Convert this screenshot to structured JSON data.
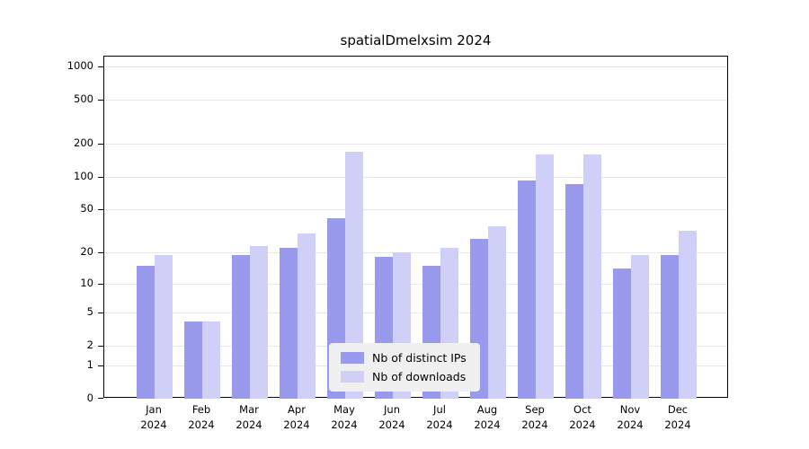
{
  "title": "spatialDmelxsim 2024",
  "legend": {
    "items": [
      {
        "label": "Nb of distinct IPs"
      },
      {
        "label": "Nb of downloads"
      }
    ]
  },
  "chart_data": {
    "type": "bar",
    "title": "spatialDmelxsim 2024",
    "categories": [
      "Jan\n2024",
      "Feb\n2024",
      "Mar\n2024",
      "Apr\n2024",
      "May\n2024",
      "Jun\n2024",
      "Jul\n2024",
      "Aug\n2024",
      "Sep\n2024",
      "Oct\n2024",
      "Nov\n2024",
      "Dec\n2024"
    ],
    "series": [
      {
        "name": "Nb of distinct IPs",
        "color": "#9999ee",
        "values": [
          15,
          4,
          19,
          22,
          42,
          18,
          15,
          27,
          92,
          85,
          14,
          19
        ]
      },
      {
        "name": "Nb of downloads",
        "color": "#cfcff7",
        "values": [
          19,
          4,
          23,
          30,
          170,
          20,
          22,
          35,
          160,
          160,
          19,
          32
        ]
      }
    ],
    "xlabel": "",
    "ylabel": "",
    "y_ticks": [
      0,
      1,
      2,
      5,
      10,
      20,
      50,
      100,
      200,
      500,
      1000
    ],
    "y_scale": "log1p",
    "ylim": [
      0,
      1000
    ],
    "grid": true,
    "legend_position": "inside-bottom-center",
    "colors": {
      "distinct_ips": "#9999ee",
      "downloads": "#cfcff7",
      "gridline": "#e8e8e8"
    }
  }
}
